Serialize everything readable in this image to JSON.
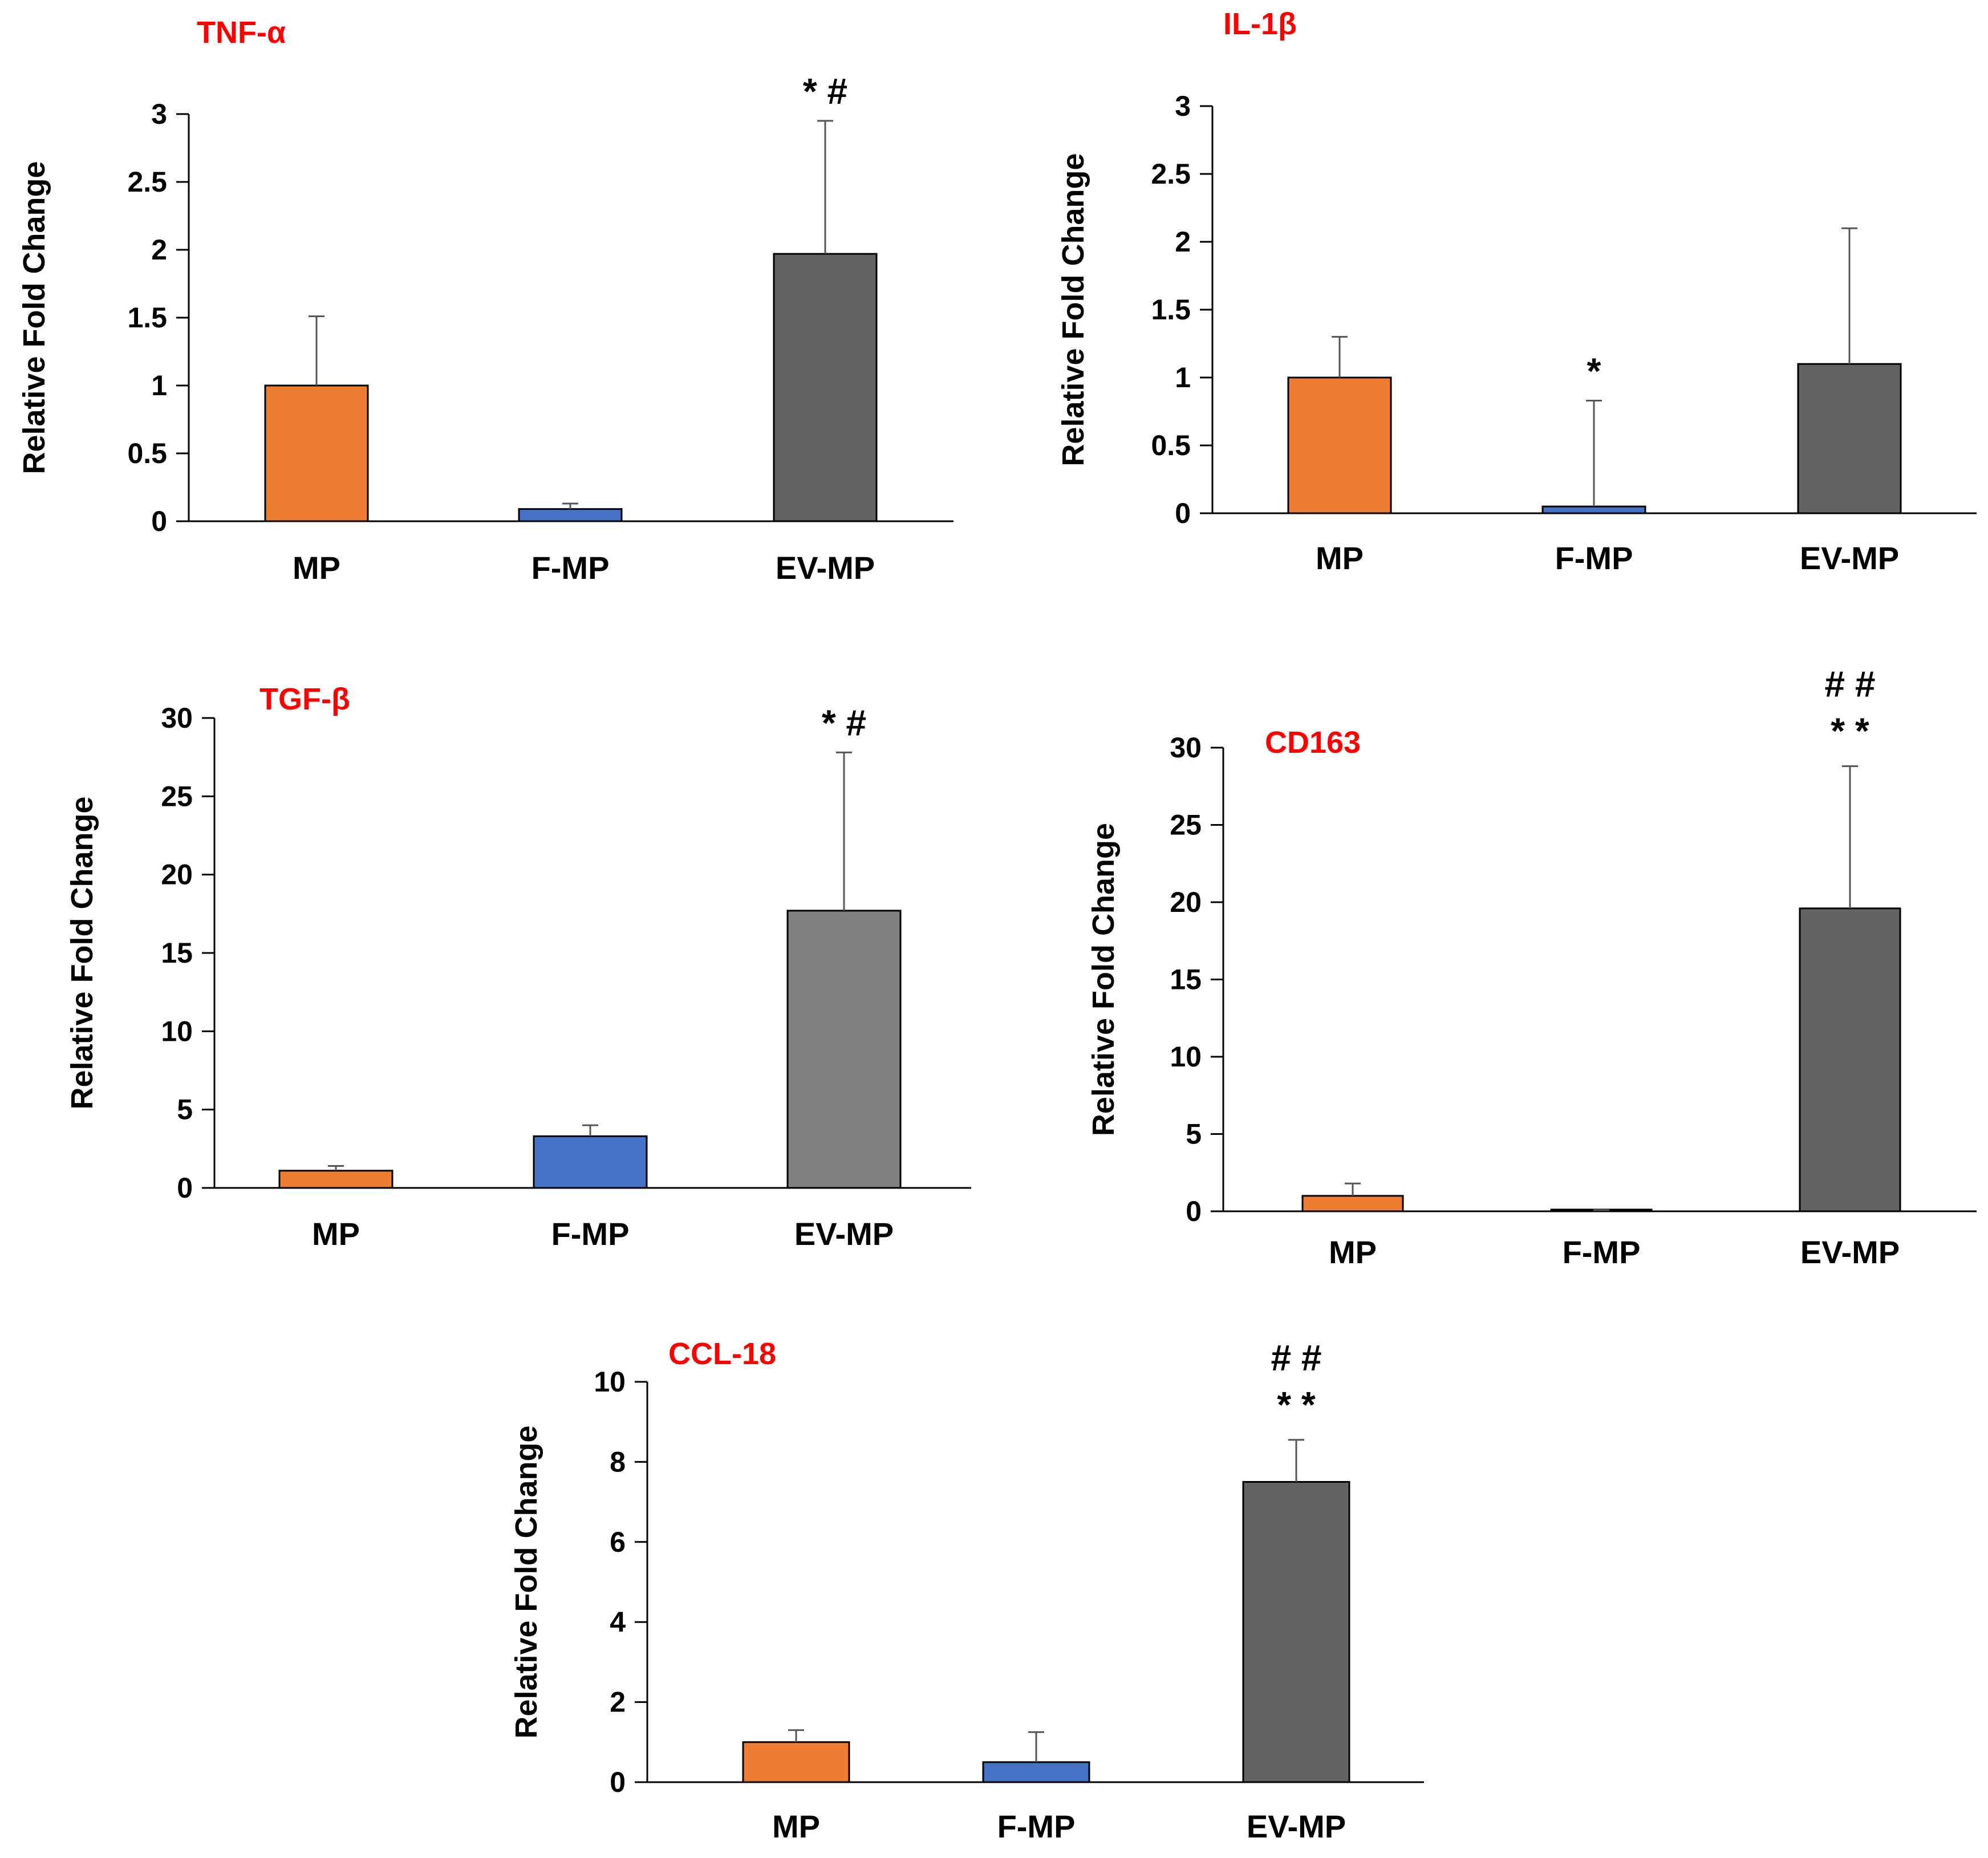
{
  "chart_data": [
    {
      "type": "bar",
      "title": "TNF-α",
      "ylabel": "Relative Fold Change",
      "xlabel": "",
      "categories": [
        "MP",
        "F-MP",
        "EV-MP"
      ],
      "values": [
        1.0,
        0.09,
        1.97
      ],
      "error_upper": [
        1.51,
        0.13,
        2.95
      ],
      "ylim": [
        0,
        3
      ],
      "yticks": [
        "0",
        "0.5",
        "1",
        "1.5",
        "2",
        "2.5",
        "3"
      ],
      "annotations": [
        "",
        "",
        "* #"
      ],
      "legend": "none",
      "grid": false
    },
    {
      "type": "bar",
      "title": "IL-1β",
      "ylabel": "Relative Fold Change",
      "xlabel": "",
      "categories": [
        "MP",
        "F-MP",
        "EV-MP"
      ],
      "values": [
        1.0,
        0.05,
        1.1
      ],
      "error_upper": [
        1.3,
        0.83,
        2.1
      ],
      "ylim": [
        0,
        3
      ],
      "yticks": [
        "0",
        "0.5",
        "1",
        "1.5",
        "2",
        "2.5",
        "3"
      ],
      "annotations": [
        "",
        "*",
        ""
      ],
      "legend": "none",
      "grid": false
    },
    {
      "type": "bar",
      "title": "TGF-β",
      "ylabel": "Relative Fold Change",
      "xlabel": "",
      "categories": [
        "MP",
        "F-MP",
        "EV-MP"
      ],
      "values": [
        1.1,
        3.3,
        17.7
      ],
      "error_upper": [
        1.4,
        4.0,
        27.8
      ],
      "ylim": [
        0,
        30
      ],
      "yticks": [
        "0",
        "5",
        "10",
        "15",
        "20",
        "25",
        "30"
      ],
      "annotations": [
        "",
        "",
        "*   #"
      ],
      "legend": "none",
      "grid": false
    },
    {
      "type": "bar",
      "title": "CD163",
      "ylabel": "Relative Fold Change",
      "xlabel": "",
      "categories": [
        "MP",
        "F-MP",
        "EV-MP"
      ],
      "values": [
        1.0,
        0.05,
        19.6
      ],
      "error_upper": [
        1.8,
        0.08,
        28.8
      ],
      "ylim": [
        0,
        30
      ],
      "yticks": [
        "0",
        "5",
        "10",
        "15",
        "20",
        "25",
        "30"
      ],
      "annotations": [
        "",
        "",
        "##|**"
      ],
      "legend": "none",
      "grid": false
    },
    {
      "type": "bar",
      "title": "CCL-18",
      "ylabel": "Relative Fold Change",
      "xlabel": "",
      "categories": [
        "MP",
        "F-MP",
        "EV-MP"
      ],
      "values": [
        1.0,
        0.5,
        7.5
      ],
      "error_upper": [
        1.3,
        1.25,
        8.55
      ],
      "ylim": [
        0,
        10
      ],
      "yticks": [
        "0",
        "2",
        "4",
        "6",
        "8",
        "10"
      ],
      "annotations": [
        "",
        "",
        "##|**"
      ],
      "legend": "none",
      "grid": false
    }
  ],
  "colors": {
    "title": "#ff0000",
    "axis": "#000000",
    "bar_outline": "#000000",
    "error_bar": "#555555",
    "bars_by_panel": [
      [
        "#ed7d31",
        "#4472c4",
        "#636363"
      ],
      [
        "#ed7d31",
        "#4472c4",
        "#636363"
      ],
      [
        "#ed7d31",
        "#4472c4",
        "#7f7f7f"
      ],
      [
        "#ed7d31",
        "#4472c4",
        "#636363"
      ],
      [
        "#ed7d31",
        "#4472c4",
        "#636363"
      ]
    ]
  }
}
